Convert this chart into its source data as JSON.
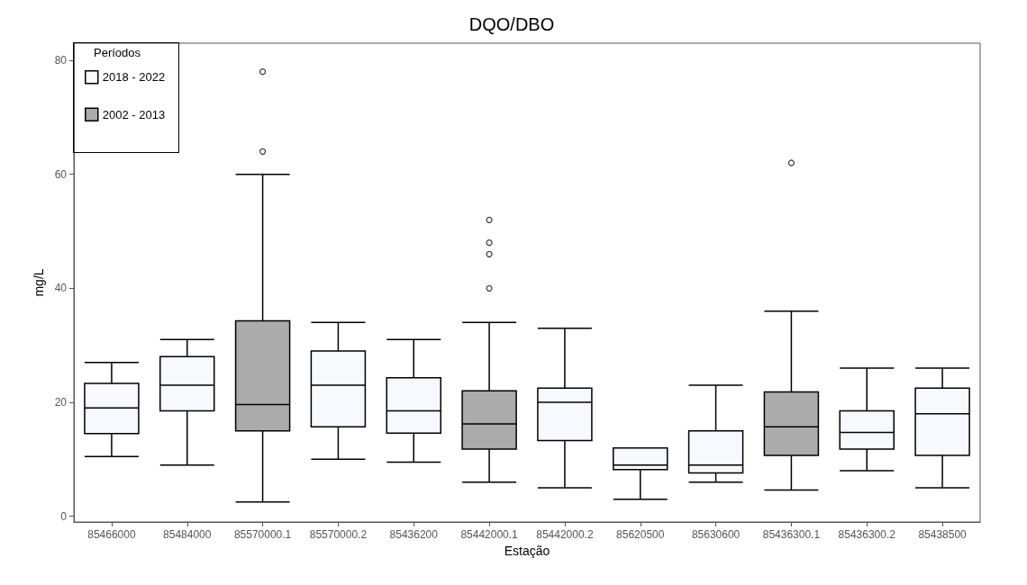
{
  "chart_data": {
    "type": "box",
    "title": "DQO/DBO",
    "xlabel": "Estação",
    "ylabel": "mg/L",
    "legend_title": "Períodos",
    "legend": "top left",
    "grid": false,
    "categories": [
      "85466000",
      "85484000",
      "85570000.1",
      "85570000.2",
      "85436200",
      "85442000.1",
      "85442000.2",
      "85620500",
      "85630600",
      "85436300.1",
      "85436300.2",
      "85438500"
    ],
    "ylim": [
      -1,
      83
    ],
    "yticks": [
      0,
      20,
      40,
      60,
      80
    ],
    "series": [
      {
        "name": "2018 - 2022",
        "color": "#f8f8ff",
        "boxes": [
          {
            "low": 10.5,
            "q1": 14.5,
            "median": 19,
            "q3": 23.3,
            "high": 27
          },
          {
            "low": 9,
            "q1": 18.5,
            "median": 23,
            "q3": 28,
            "high": 31
          },
          null,
          {
            "low": 10,
            "q1": 15.7,
            "median": 23,
            "q3": 29,
            "high": 34
          },
          {
            "low": 9.5,
            "q1": 14.6,
            "median": 18.5,
            "q3": 24.3,
            "high": 31
          },
          null,
          {
            "low": 5,
            "q1": 13.3,
            "median": 20,
            "q3": 22.5,
            "high": 33
          },
          {
            "low": 3,
            "q1": 8.2,
            "median": 9,
            "q3": 12,
            "high": 12
          },
          {
            "low": 6,
            "q1": 7.6,
            "median": 9,
            "q3": 15,
            "high": 23
          },
          null,
          {
            "low": 8,
            "q1": 11.8,
            "median": 14.7,
            "q3": 18.5,
            "high": 26
          },
          {
            "low": 5,
            "q1": 10.7,
            "median": 18,
            "q3": 22.5,
            "high": 26
          }
        ]
      },
      {
        "name": "2002 - 2013",
        "color": "#ababab",
        "boxes": [
          null,
          null,
          {
            "low": 2.5,
            "q1": 15,
            "median": 19.6,
            "q3": 34.3,
            "high": 60,
            "outliers": [
              64,
              78
            ]
          },
          null,
          null,
          {
            "low": 6,
            "q1": 11.8,
            "median": 16.2,
            "q3": 22,
            "high": 34,
            "outliers": [
              40,
              46,
              48,
              52
            ]
          },
          null,
          null,
          null,
          {
            "low": 4.6,
            "q1": 10.7,
            "median": 15.7,
            "q3": 21.8,
            "high": 36,
            "outliers": [
              62
            ]
          },
          null,
          null
        ]
      }
    ]
  }
}
